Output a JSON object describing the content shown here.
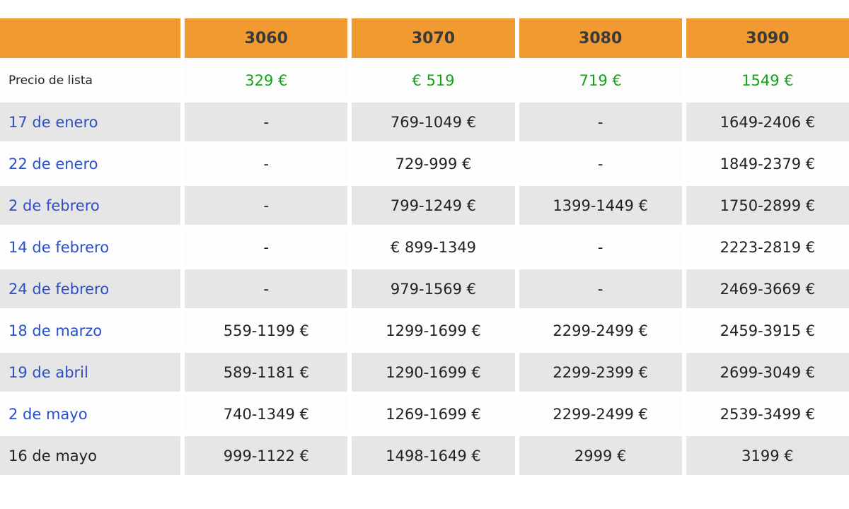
{
  "table": {
    "header": {
      "corner": "",
      "columns": [
        "3060",
        "3070",
        "3080",
        "3090"
      ]
    },
    "list_price": {
      "label": "Precio de lista",
      "values": [
        "329 €",
        "€ 519",
        "719 €",
        "1549 €"
      ]
    },
    "rows": [
      {
        "label": "17 de enero",
        "values": [
          "-",
          "769-1049 €",
          "-",
          "1649-2406 €"
        ]
      },
      {
        "label": "22 de enero",
        "values": [
          "-",
          "729-999 €",
          "-",
          "1849-2379 €"
        ]
      },
      {
        "label": "2 de febrero",
        "values": [
          "-",
          "799-1249 €",
          "1399-1449 €",
          "1750-2899 €"
        ]
      },
      {
        "label": "14 de febrero",
        "values": [
          "-",
          "€ 899-1349",
          "-",
          "2223-2819 €"
        ]
      },
      {
        "label": "24 de febrero",
        "values": [
          "-",
          "979-1569 €",
          "-",
          "2469-3669 €"
        ]
      },
      {
        "label": "18 de marzo",
        "values": [
          "559-1199 €",
          "1299-1699 €",
          "2299-2499 €",
          "2459-3915 €"
        ]
      },
      {
        "label": "19 de abril",
        "values": [
          "589-1181 €",
          "1290-1699 €",
          "2299-2399 €",
          "2699-3049 €"
        ]
      },
      {
        "label": "2 de mayo",
        "values": [
          "740-1349 €",
          "1269-1699 €",
          "2299-2499 €",
          "2539-3499 €"
        ]
      },
      {
        "label": "16 de mayo",
        "values": [
          "999-1122 €",
          "1498-1649 €",
          "2999 €",
          "3199 €"
        ]
      }
    ]
  },
  "colors": {
    "header_bg": "#f19a2f",
    "list_price_text": "#17a11a",
    "date_link_text": "#2a4fc9",
    "stripe_bg": "#e6e6e6"
  }
}
